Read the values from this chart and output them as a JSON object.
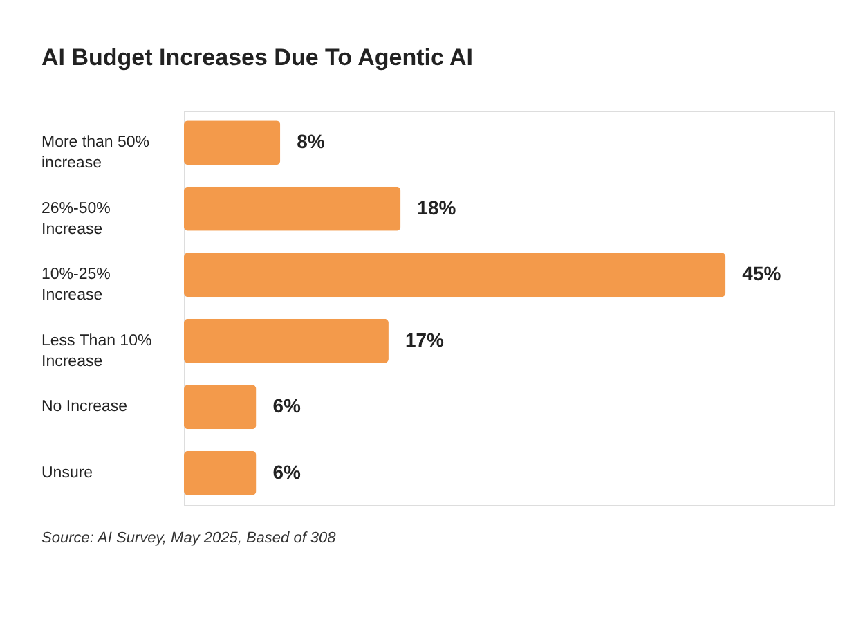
{
  "chart_data": {
    "type": "bar",
    "orientation": "horizontal",
    "title": "AI Budget Increases Due To Agentic AI",
    "categories": [
      "More than 50% increase",
      "26%-50% Increase",
      "10%-25% Increase",
      "Less Than 10% Increase",
      "No Increase",
      "Unsure"
    ],
    "values": [
      8,
      18,
      45,
      17,
      6,
      6
    ],
    "value_labels": [
      "8%",
      "18%",
      "45%",
      "17%",
      "6%",
      "6%"
    ],
    "color": "#f39a4b",
    "grid": false,
    "annotations": [
      "Source: AI Survey, May 2025, Based of 308"
    ]
  }
}
